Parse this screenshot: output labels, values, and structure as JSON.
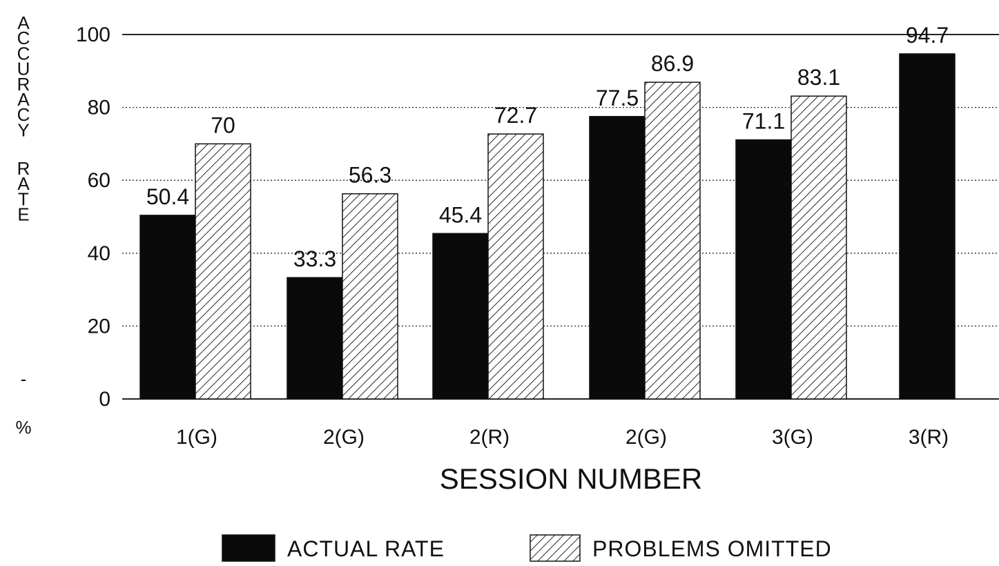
{
  "chart_data": {
    "type": "bar",
    "title": "",
    "xlabel": "SESSION NUMBER",
    "ylabel": "ACCURACY RATE - %",
    "categories": [
      "1(G)",
      "2(G)",
      "2(R)",
      "2(G)",
      "3(G)",
      "3(R)"
    ],
    "series": [
      {
        "name": "ACTUAL RATE",
        "fill": "solid",
        "color": "#0a0a0a",
        "values": [
          50.4,
          33.3,
          45.4,
          77.5,
          71.1,
          94.7
        ],
        "labels": [
          "50.4",
          "33.3",
          "45.4",
          "77.5",
          "71.1",
          "94.7"
        ]
      },
      {
        "name": "PROBLEMS OMITTED",
        "fill": "hatched",
        "color": "#ffffff",
        "values": [
          70,
          56.3,
          72.7,
          86.9,
          83.1,
          null
        ],
        "labels": [
          "70",
          "56.3",
          "72.7",
          "86.9",
          "83.1",
          null
        ]
      }
    ],
    "ylim": [
      0,
      100
    ],
    "yticks": [
      "0",
      "20",
      "40",
      "60",
      "80",
      "100"
    ],
    "grid": true,
    "grid_style": "dotted",
    "legend_position": "bottom-center"
  }
}
